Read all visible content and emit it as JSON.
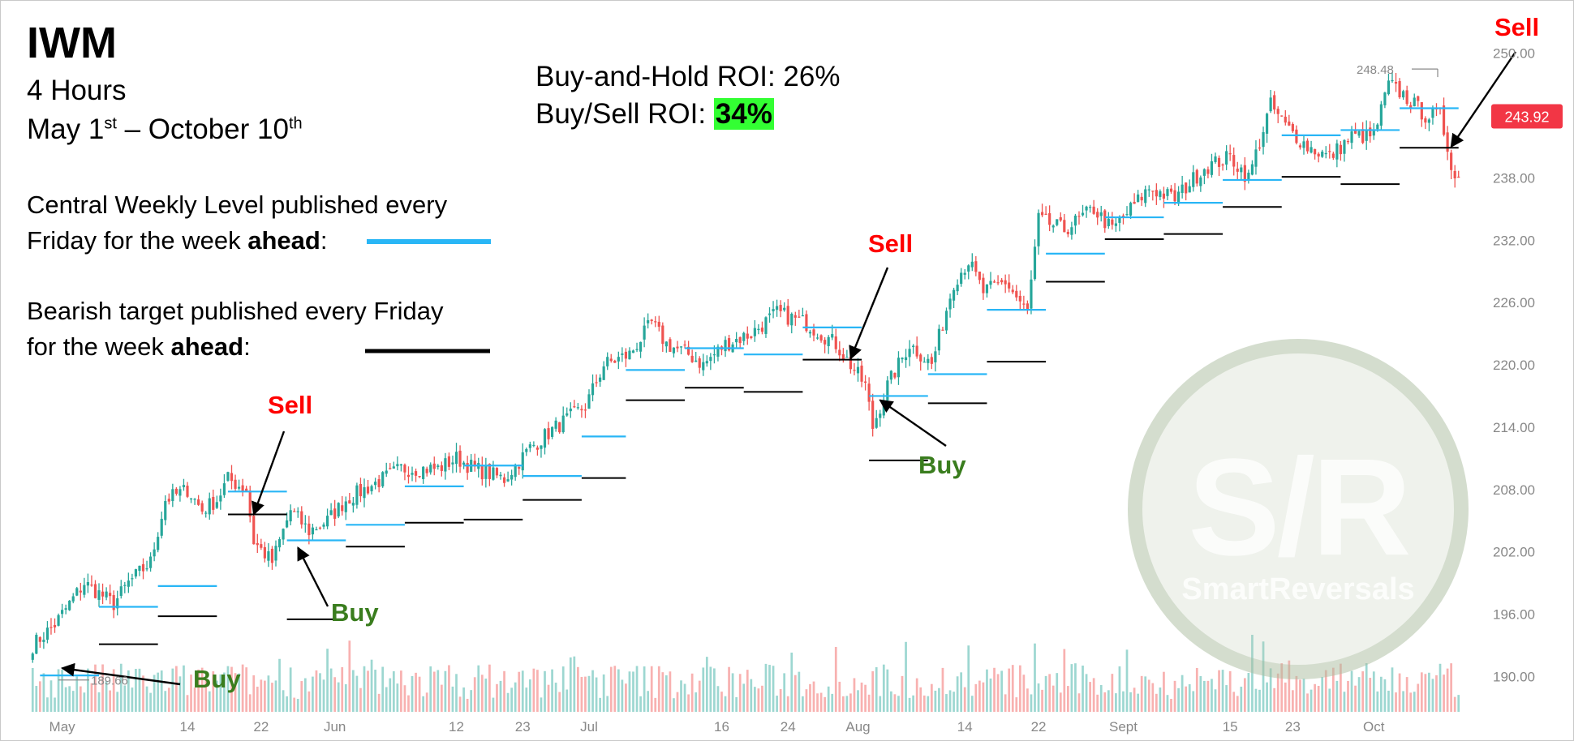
{
  "header": {
    "ticker": "IWM",
    "timeframe": "4 Hours",
    "date_range": {
      "start_month": "May 1",
      "start_sup": "st",
      "sep": " – ",
      "end_month": "October 10",
      "end_sup": "th"
    }
  },
  "legend": {
    "central_line1": "Central Weekly Level published every",
    "central_line2_pre": "Friday for the week ",
    "central_line2_bold": "ahead",
    "central_line2_post": ":",
    "bearish_line1": "Bearish target published every Friday",
    "bearish_line2_pre": "for the week ",
    "bearish_line2_bold": "ahead",
    "bearish_line2_post": ":"
  },
  "roi": {
    "buy_hold_label": "Buy-and-Hold ROI: 26%",
    "buy_sell_label": "Buy/Sell ROI: ",
    "buy_sell_value": "34%"
  },
  "signals": {
    "sell_1": "Sell",
    "buy_1": "Buy",
    "buy_2": "Buy",
    "sell_2": "Sell",
    "buy_3": "Buy",
    "sell_3": "Sell"
  },
  "watermark": {
    "main": "S/R",
    "sub": "SmartReversals"
  },
  "colors": {
    "up": "#26a69a",
    "down": "#ef5350",
    "central_level": "#29b6f6",
    "bearish_level": "#000000",
    "roi_highlight": "#33ff33",
    "sell": "#ff0000",
    "buy": "#3a7d1e",
    "price_tag": "#f23645"
  },
  "chart_data": {
    "type": "candlestick",
    "ylim": [
      188,
      252
    ],
    "y_ticks": [
      190,
      196,
      202,
      208,
      214,
      220,
      226,
      232,
      238,
      244,
      250
    ],
    "y_tick_labels": [
      "190.00",
      "196.00",
      "202.00",
      "208.00",
      "214.00",
      "220.00",
      "226.00",
      "232.00",
      "238.00",
      "",
      "250.00"
    ],
    "x_labels": [
      {
        "label": "May",
        "idx": 8
      },
      {
        "label": "14",
        "idx": 42
      },
      {
        "label": "22",
        "idx": 62
      },
      {
        "label": "Jun",
        "idx": 82
      },
      {
        "label": "12",
        "idx": 115
      },
      {
        "label": "23",
        "idx": 133
      },
      {
        "label": "Jul",
        "idx": 151
      },
      {
        "label": "16",
        "idx": 187
      },
      {
        "label": "24",
        "idx": 205
      },
      {
        "label": "Aug",
        "idx": 224
      },
      {
        "label": "14",
        "idx": 253
      },
      {
        "label": "22",
        "idx": 273
      },
      {
        "label": "Sept",
        "idx": 296
      },
      {
        "label": "15",
        "idx": 325
      },
      {
        "label": "23",
        "idx": 342
      },
      {
        "label": "Oct",
        "idx": 364
      }
    ],
    "last_price": "243.92",
    "high_label": "248.48",
    "low_label": "189.66",
    "series": [
      {
        "name": "Price",
        "anchors": [
          [
            0,
            193
          ],
          [
            6,
            195
          ],
          [
            10,
            197
          ],
          [
            14,
            199
          ],
          [
            18,
            198
          ],
          [
            22,
            197
          ],
          [
            26,
            199
          ],
          [
            32,
            201
          ],
          [
            36,
            207
          ],
          [
            42,
            208
          ],
          [
            46,
            206
          ],
          [
            50,
            207
          ],
          [
            53,
            209
          ],
          [
            58,
            208
          ],
          [
            60,
            203
          ],
          [
            65,
            201
          ],
          [
            70,
            206
          ],
          [
            75,
            204
          ],
          [
            80,
            205
          ],
          [
            85,
            207
          ],
          [
            90,
            208
          ],
          [
            100,
            210
          ],
          [
            110,
            210
          ],
          [
            115,
            211
          ],
          [
            120,
            210
          ],
          [
            128,
            209
          ],
          [
            135,
            212
          ],
          [
            142,
            214
          ],
          [
            150,
            216
          ],
          [
            155,
            220
          ],
          [
            162,
            221
          ],
          [
            168,
            224
          ],
          [
            172,
            222
          ],
          [
            178,
            221
          ],
          [
            182,
            220
          ],
          [
            188,
            222
          ],
          [
            195,
            223
          ],
          [
            202,
            225
          ],
          [
            210,
            224
          ],
          [
            218,
            222
          ],
          [
            222,
            220
          ],
          [
            226,
            218
          ],
          [
            228,
            214
          ],
          [
            232,
            218
          ],
          [
            238,
            222
          ],
          [
            244,
            220
          ],
          [
            250,
            228
          ],
          [
            254,
            230
          ],
          [
            258,
            227
          ],
          [
            264,
            228
          ],
          [
            270,
            225
          ],
          [
            273,
            234
          ],
          [
            280,
            233
          ],
          [
            288,
            235
          ],
          [
            293,
            233
          ],
          [
            298,
            235
          ],
          [
            303,
            237
          ],
          [
            310,
            236
          ],
          [
            318,
            239
          ],
          [
            325,
            240
          ],
          [
            330,
            238
          ],
          [
            336,
            245
          ],
          [
            340,
            243
          ],
          [
            346,
            241
          ],
          [
            352,
            240
          ],
          [
            358,
            242
          ],
          [
            364,
            242
          ],
          [
            368,
            247
          ],
          [
            372,
            246
          ],
          [
            378,
            244
          ],
          [
            382,
            244
          ],
          [
            386,
            238
          ]
        ]
      },
      {
        "name": "Volume",
        "range": [
          0,
          60
        ]
      }
    ],
    "central_levels": [
      {
        "x1": 2,
        "x2": 18,
        "y": 190.1
      },
      {
        "x1": 18,
        "x2": 34,
        "y": 196.7
      },
      {
        "x1": 34,
        "x2": 50,
        "y": 198.7
      },
      {
        "x1": 53,
        "x2": 69,
        "y": 207.8
      },
      {
        "x1": 69,
        "x2": 85,
        "y": 203.1
      },
      {
        "x1": 85,
        "x2": 101,
        "y": 204.6
      },
      {
        "x1": 101,
        "x2": 117,
        "y": 208.3
      },
      {
        "x1": 117,
        "x2": 133,
        "y": 210.3
      },
      {
        "x1": 133,
        "x2": 149,
        "y": 209.3
      },
      {
        "x1": 149,
        "x2": 161,
        "y": 213.1
      },
      {
        "x1": 161,
        "x2": 177,
        "y": 219.5
      },
      {
        "x1": 177,
        "x2": 193,
        "y": 221.6
      },
      {
        "x1": 193,
        "x2": 209,
        "y": 221.0
      },
      {
        "x1": 209,
        "x2": 225,
        "y": 223.6
      },
      {
        "x1": 227,
        "x2": 243,
        "y": 217.0
      },
      {
        "x1": 243,
        "x2": 259,
        "y": 219.1
      },
      {
        "x1": 259,
        "x2": 275,
        "y": 225.3
      },
      {
        "x1": 275,
        "x2": 291,
        "y": 230.7
      },
      {
        "x1": 291,
        "x2": 307,
        "y": 234.2
      },
      {
        "x1": 307,
        "x2": 323,
        "y": 235.6
      },
      {
        "x1": 323,
        "x2": 339,
        "y": 237.8
      },
      {
        "x1": 339,
        "x2": 355,
        "y": 242.1
      },
      {
        "x1": 355,
        "x2": 371,
        "y": 242.6
      },
      {
        "x1": 371,
        "x2": 387,
        "y": 244.7
      }
    ],
    "bearish_levels": [
      {
        "x1": 18,
        "x2": 34,
        "y": 193.1
      },
      {
        "x1": 34,
        "x2": 50,
        "y": 195.8
      },
      {
        "x1": 53,
        "x2": 69,
        "y": 205.6
      },
      {
        "x1": 69,
        "x2": 85,
        "y": 195.5
      },
      {
        "x1": 85,
        "x2": 101,
        "y": 202.5
      },
      {
        "x1": 101,
        "x2": 117,
        "y": 204.8
      },
      {
        "x1": 117,
        "x2": 133,
        "y": 205.1
      },
      {
        "x1": 133,
        "x2": 149,
        "y": 207.0
      },
      {
        "x1": 149,
        "x2": 161,
        "y": 209.1
      },
      {
        "x1": 161,
        "x2": 177,
        "y": 216.6
      },
      {
        "x1": 177,
        "x2": 193,
        "y": 217.8
      },
      {
        "x1": 193,
        "x2": 209,
        "y": 217.4
      },
      {
        "x1": 209,
        "x2": 225,
        "y": 220.5
      },
      {
        "x1": 227,
        "x2": 243,
        "y": 210.8
      },
      {
        "x1": 243,
        "x2": 259,
        "y": 216.3
      },
      {
        "x1": 259,
        "x2": 275,
        "y": 220.3
      },
      {
        "x1": 275,
        "x2": 291,
        "y": 228.0
      },
      {
        "x1": 291,
        "x2": 307,
        "y": 232.1
      },
      {
        "x1": 307,
        "x2": 323,
        "y": 232.6
      },
      {
        "x1": 323,
        "x2": 339,
        "y": 235.2
      },
      {
        "x1": 339,
        "x2": 355,
        "y": 238.1
      },
      {
        "x1": 355,
        "x2": 371,
        "y": 237.4
      },
      {
        "x1": 371,
        "x2": 387,
        "y": 240.9
      }
    ],
    "signal_points": [
      {
        "name": "buy_1",
        "idx": 8,
        "price": 190.8
      },
      {
        "name": "sell_1",
        "idx": 60,
        "price": 205.6
      },
      {
        "name": "buy_2",
        "idx": 72,
        "price": 202.4
      },
      {
        "name": "sell_2",
        "idx": 222,
        "price": 220.6
      },
      {
        "name": "buy_3",
        "idx": 230,
        "price": 216.6
      },
      {
        "name": "sell_3",
        "idx": 385,
        "price": 241.0
      }
    ]
  }
}
